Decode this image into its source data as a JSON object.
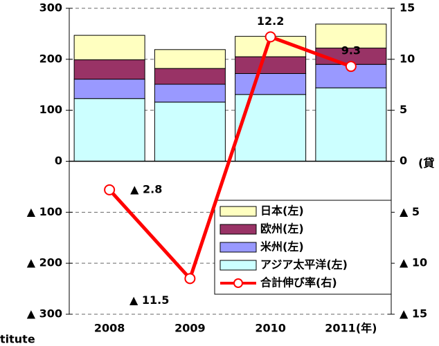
{
  "chart_data": {
    "type": "bar",
    "stacked": true,
    "categories": [
      "2008",
      "2009",
      "2010",
      "2011(年)"
    ],
    "series": [
      {
        "name": "アジア太平洋(左)",
        "color": "#ccffff",
        "values": [
          123,
          116,
          131,
          144
        ]
      },
      {
        "name": "米州(左)",
        "color": "#9999ff",
        "values": [
          38,
          35,
          41,
          46
        ]
      },
      {
        "name": "欧州(左)",
        "color": "#993366",
        "values": [
          38,
          31,
          33,
          32
        ]
      },
      {
        "name": "日本(左)",
        "color": "#ffffc0",
        "values": [
          48,
          37,
          40,
          47
        ]
      },
      {
        "name": "合計伸び率(右)",
        "color": "#ff0000",
        "type": "line",
        "axis": "y2",
        "values": [
          -2.8,
          -11.5,
          12.2,
          9.3
        ],
        "value_labels": [
          "▲ 2.8",
          "▲ 11.5",
          "12.2",
          "9.3"
        ]
      }
    ],
    "ylim": [
      -300,
      300
    ],
    "yticks": [
      {
        "value": -300,
        "label": "▲ 300"
      },
      {
        "value": -200,
        "label": "▲ 200"
      },
      {
        "value": -100,
        "label": "▲ 100"
      },
      0,
      100,
      200,
      300
    ],
    "y2lim": [
      -15,
      15
    ],
    "y2ticks": [
      {
        "value": -15,
        "label": "▲ 15"
      },
      {
        "value": -10,
        "label": "▲ 10"
      },
      {
        "value": -5,
        "label": "▲ 5"
      },
      0,
      5,
      10,
      15
    ],
    "y2_label": "(貸",
    "source_fragment": "titute",
    "grid": true,
    "legend": "lower right"
  }
}
